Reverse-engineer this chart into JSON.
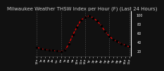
{
  "title": "Milwaukee Weather THSW Index per Hour (F) (Last 24 Hours)",
  "bg_color": "#111111",
  "plot_bg": "#111111",
  "line_color": "#ff0000",
  "dot_color": "#000000",
  "grid_color": "#555555",
  "right_panel_color": "#000000",
  "ylabel_color": "#ffffff",
  "title_color": "#cccccc",
  "hours": [
    0,
    1,
    2,
    3,
    4,
    5,
    6,
    7,
    8,
    9,
    10,
    11,
    12,
    13,
    14,
    15,
    16,
    17,
    18,
    19,
    20,
    21,
    22,
    23
  ],
  "values": [
    30,
    27,
    25,
    24,
    23,
    22,
    21,
    23,
    38,
    58,
    75,
    90,
    96,
    99,
    95,
    88,
    78,
    65,
    55,
    47,
    43,
    38,
    35,
    31
  ],
  "ylim": [
    10,
    110
  ],
  "ytick_vals": [
    20,
    40,
    60,
    80,
    100
  ],
  "vgrid_positions": [
    0,
    6,
    12,
    18,
    23
  ],
  "title_fontsize": 5.0,
  "tick_fontsize": 3.2,
  "right_ytick_fontsize": 3.5
}
